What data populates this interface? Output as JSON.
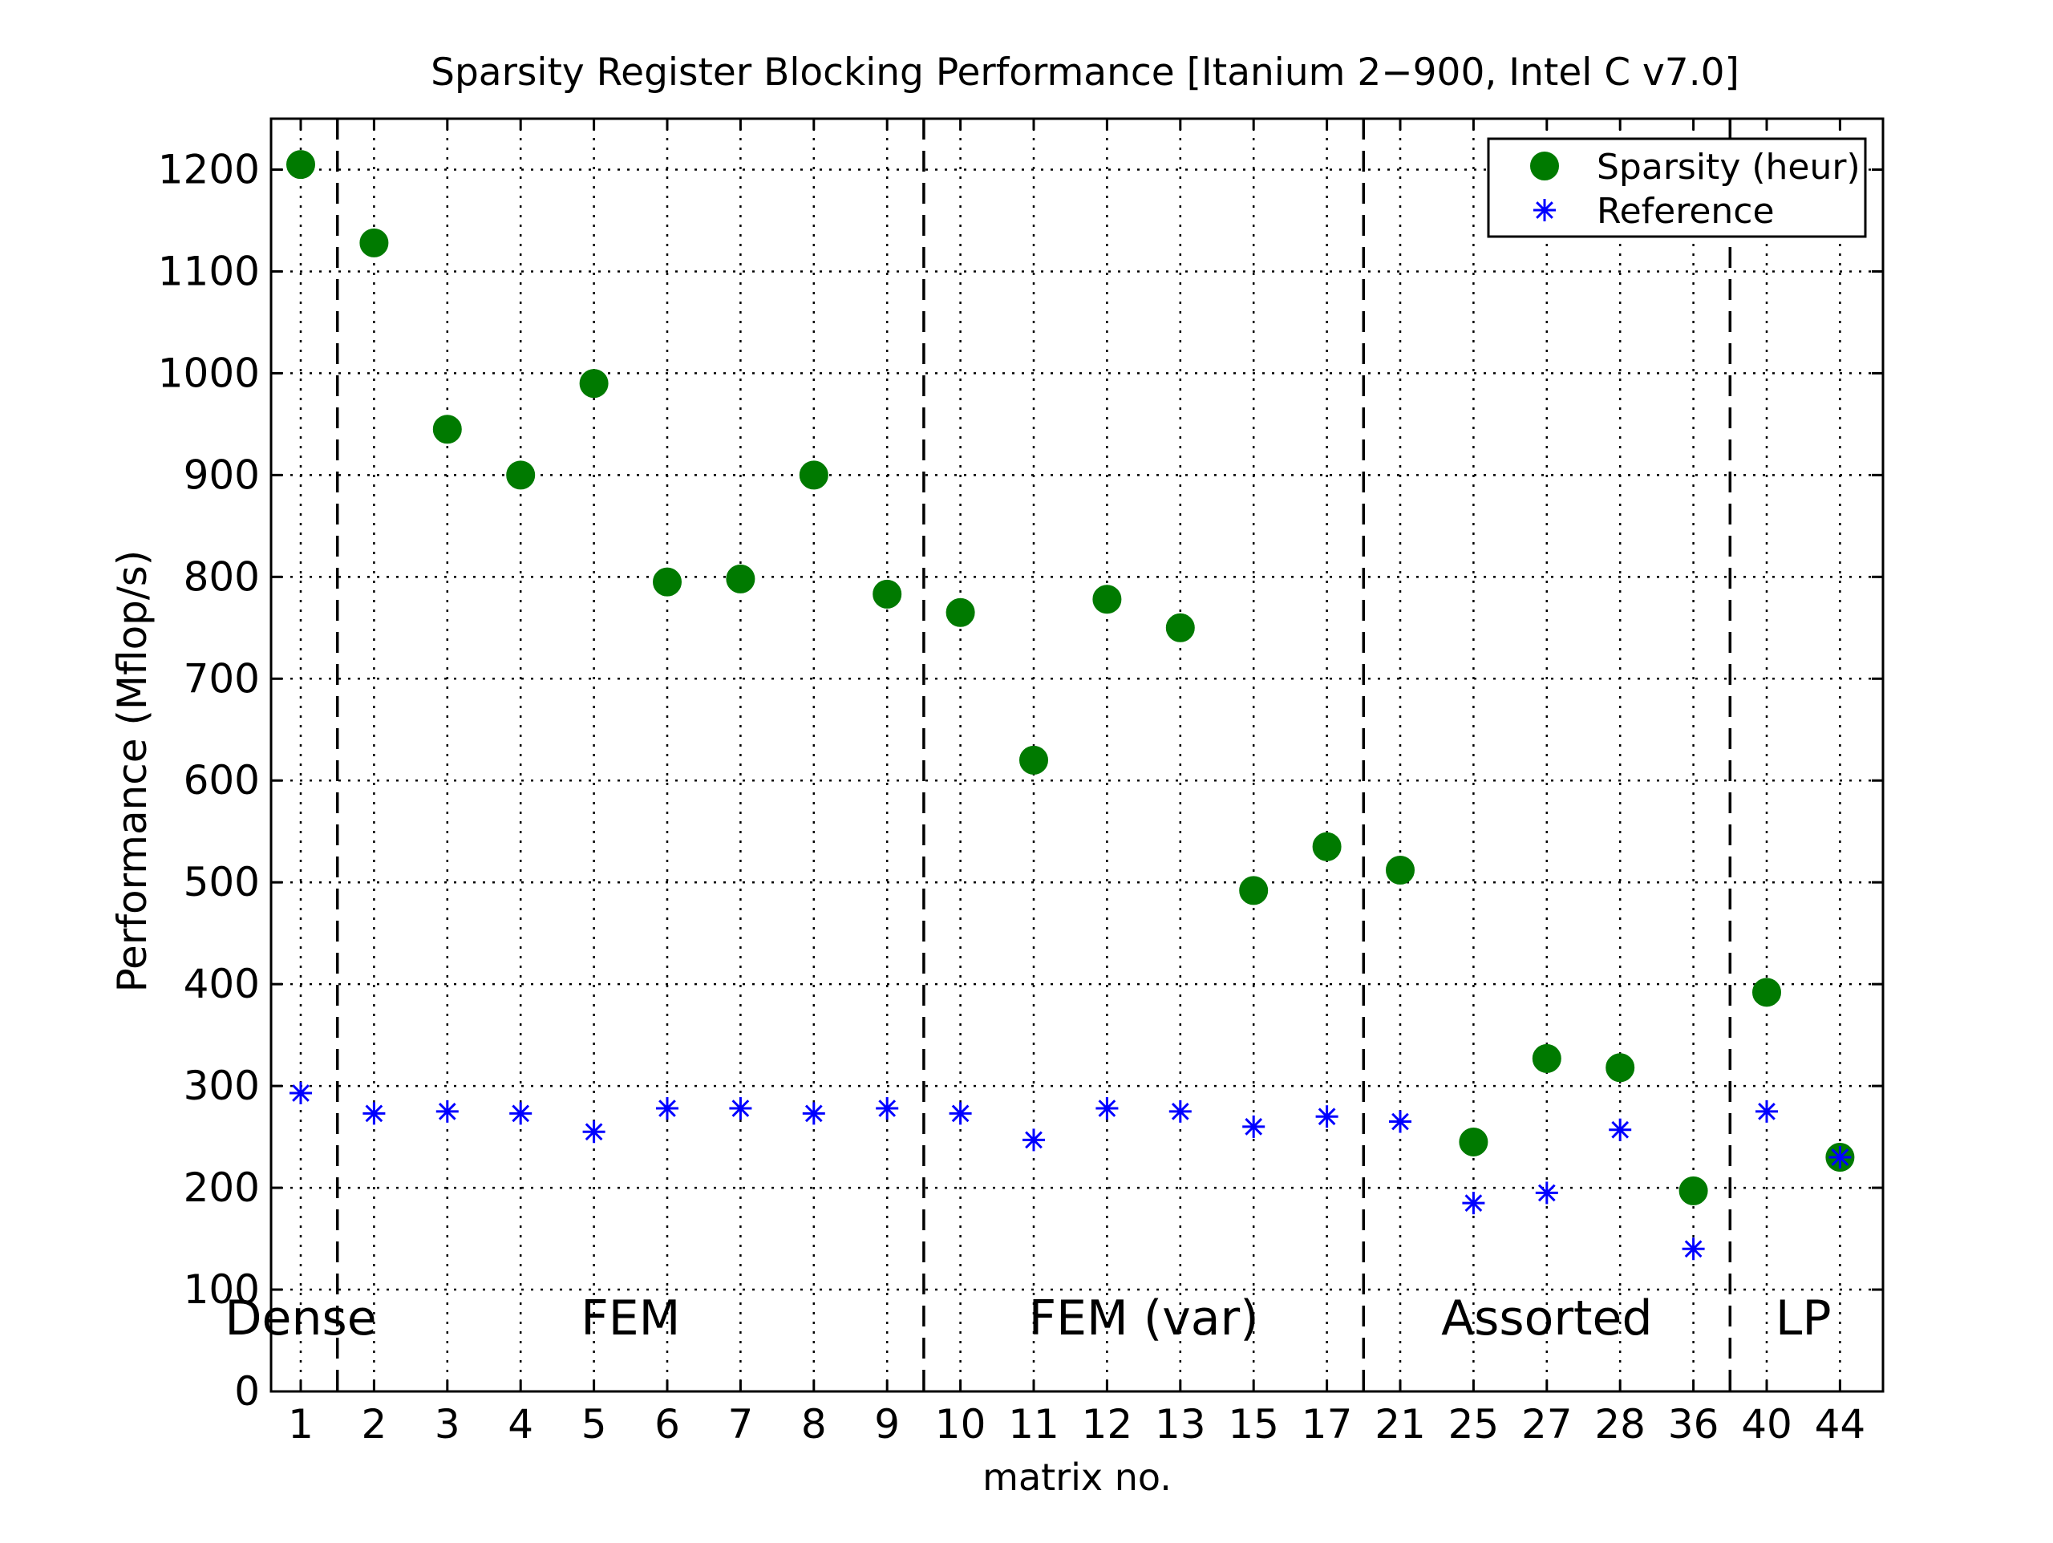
{
  "chart_data": {
    "type": "scatter",
    "title": "Sparsity Register Blocking Performance [Itanium 2−900, Intel C v7.0]",
    "xlabel": "matrix no.",
    "ylabel": "Performance (Mflop/s)",
    "categories": [
      "1",
      "2",
      "3",
      "4",
      "5",
      "6",
      "7",
      "8",
      "9",
      "10",
      "11",
      "12",
      "13",
      "15",
      "17",
      "21",
      "25",
      "27",
      "28",
      "36",
      "40",
      "44"
    ],
    "ylim": [
      0,
      1250
    ],
    "yticks": [
      0,
      100,
      200,
      300,
      400,
      500,
      600,
      700,
      800,
      900,
      1000,
      1100,
      1200
    ],
    "grid": true,
    "legend_position": "top-right",
    "series": [
      {
        "name": "Sparsity (heur)",
        "marker": "filled-circle",
        "color": "#007a00",
        "values": [
          1205,
          1128,
          945,
          900,
          990,
          795,
          798,
          900,
          783,
          765,
          620,
          778,
          750,
          492,
          535,
          512,
          245,
          327,
          318,
          197,
          392,
          230
        ]
      },
      {
        "name": "Reference",
        "marker": "asterisk",
        "color": "#0000ff",
        "values": [
          293,
          273,
          275,
          273,
          255,
          278,
          278,
          273,
          278,
          273,
          247,
          278,
          275,
          260,
          270,
          265,
          185,
          195,
          257,
          140,
          275,
          230
        ]
      }
    ],
    "groups": [
      {
        "label": "Dense",
        "start": 1,
        "end": 1
      },
      {
        "label": "FEM",
        "start": 2,
        "end": 9
      },
      {
        "label": "FEM (var)",
        "start": 10,
        "end": 15
      },
      {
        "label": "Assorted",
        "start": 16,
        "end": 20
      },
      {
        "label": "LP",
        "start": 21,
        "end": 22
      }
    ]
  }
}
